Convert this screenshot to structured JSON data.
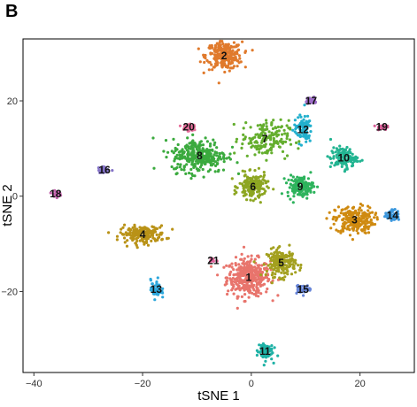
{
  "panel_label": "B",
  "chart_data": {
    "type": "scatter",
    "title": "",
    "xlabel": "tSNE 1",
    "ylabel": "tSNE 2",
    "xlim": [
      -42,
      30
    ],
    "ylim": [
      -37,
      33
    ],
    "xticks": [
      -40,
      -20,
      0,
      20
    ],
    "yticks": [
      -20,
      0,
      20
    ],
    "x_tick_labels": [
      "−40",
      "−20",
      "0",
      "20"
    ],
    "y_tick_labels": [
      "−20",
      "0",
      "20"
    ],
    "grid": false,
    "legend": "none",
    "clusters": [
      {
        "label": "1",
        "color": "#E8746C",
        "cx": -0.5,
        "cy": -17,
        "sx": 3.6,
        "sy": 3.5,
        "n": 380
      },
      {
        "label": "2",
        "color": "#E07A2C",
        "cx": -5,
        "cy": 29.5,
        "sx": 3.0,
        "sy": 2.6,
        "n": 260
      },
      {
        "label": "3",
        "color": "#CF8A10",
        "cx": 19,
        "cy": -5,
        "sx": 3.2,
        "sy": 2.6,
        "n": 240
      },
      {
        "label": "4",
        "color": "#B99217",
        "cx": -20,
        "cy": -8,
        "sx": 3.8,
        "sy": 1.6,
        "n": 180
      },
      {
        "label": "5",
        "color": "#A3A01F",
        "cx": 5.5,
        "cy": -14,
        "sx": 2.4,
        "sy": 2.6,
        "n": 190
      },
      {
        "label": "6",
        "color": "#8DA622",
        "cx": 0.3,
        "cy": 2,
        "sx": 2.3,
        "sy": 2.4,
        "n": 170
      },
      {
        "label": "7",
        "color": "#64AE2E",
        "cx": 2.5,
        "cy": 12,
        "sx": 4.0,
        "sy": 3.5,
        "n": 170
      },
      {
        "label": "8",
        "color": "#3BAA3E",
        "cx": -9.5,
        "cy": 8.5,
        "sx": 4.6,
        "sy": 3.2,
        "n": 300
      },
      {
        "label": "9",
        "color": "#2DB35C",
        "cx": 9,
        "cy": 2,
        "sx": 2.2,
        "sy": 2.0,
        "n": 140
      },
      {
        "label": "10",
        "color": "#22B491",
        "cx": 17,
        "cy": 8,
        "sx": 2.2,
        "sy": 2.0,
        "n": 120
      },
      {
        "label": "11",
        "color": "#1FB2A6",
        "cx": 2.5,
        "cy": -32.5,
        "sx": 1.3,
        "sy": 1.8,
        "n": 80
      },
      {
        "label": "12",
        "color": "#22B0CD",
        "cx": 9.5,
        "cy": 14,
        "sx": 1.5,
        "sy": 2.6,
        "n": 90
      },
      {
        "label": "13",
        "color": "#2DA7DC",
        "cx": -17.5,
        "cy": -19.5,
        "sx": 0.9,
        "sy": 1.8,
        "n": 55
      },
      {
        "label": "14",
        "color": "#3C98DE",
        "cx": 26,
        "cy": -4,
        "sx": 1.2,
        "sy": 1.0,
        "n": 55
      },
      {
        "label": "15",
        "color": "#6785D8",
        "cx": 9.5,
        "cy": -19.5,
        "sx": 1.4,
        "sy": 0.8,
        "n": 40
      },
      {
        "label": "16",
        "color": "#8473C7",
        "cx": -27,
        "cy": 5.5,
        "sx": 1.0,
        "sy": 0.6,
        "n": 35
      },
      {
        "label": "17",
        "color": "#9E6DC9",
        "cx": 11,
        "cy": 20,
        "sx": 0.9,
        "sy": 0.8,
        "n": 30
      },
      {
        "label": "18",
        "color": "#C364AD",
        "cx": -36,
        "cy": 0.5,
        "sx": 0.7,
        "sy": 0.5,
        "n": 30
      },
      {
        "label": "19",
        "color": "#D85E97",
        "cx": 24,
        "cy": 14.5,
        "sx": 0.8,
        "sy": 0.5,
        "n": 25
      },
      {
        "label": "20",
        "color": "#E66D9A",
        "cx": -11.5,
        "cy": 14.5,
        "sx": 1.2,
        "sy": 0.8,
        "n": 45
      },
      {
        "label": "21",
        "color": "#E0609A",
        "cx": -7,
        "cy": -13.5,
        "sx": 0.5,
        "sy": 0.4,
        "n": 10
      }
    ]
  }
}
